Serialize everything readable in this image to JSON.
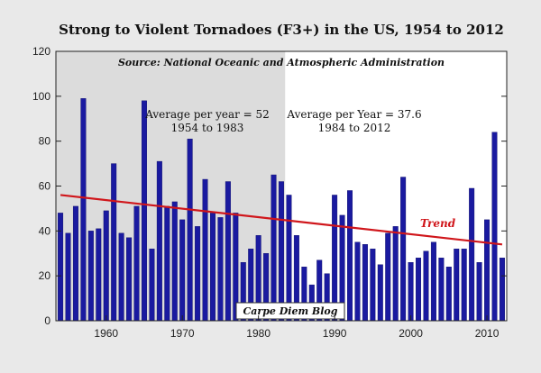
{
  "chart_data": {
    "type": "bar",
    "title": "Strong to Violent Tornadoes (F3+) in the US, 1954 to 2012",
    "source": "Source: National Oceanic and Atmospheric Administration",
    "xlabel": "",
    "ylabel": "",
    "ylim": [
      0,
      120
    ],
    "yticks": [
      "0",
      "20",
      "40",
      "60",
      "80",
      "100",
      "120"
    ],
    "xticks": [
      "1960",
      "1970",
      "1980",
      "1990",
      "2000",
      "2010"
    ],
    "xtick_years": [
      1960,
      1970,
      1980,
      1990,
      2000,
      2010
    ],
    "x": [
      1954,
      1955,
      1956,
      1957,
      1958,
      1959,
      1960,
      1961,
      1962,
      1963,
      1964,
      1965,
      1966,
      1967,
      1968,
      1969,
      1970,
      1971,
      1972,
      1973,
      1974,
      1975,
      1976,
      1977,
      1978,
      1979,
      1980,
      1981,
      1982,
      1983,
      1984,
      1985,
      1986,
      1987,
      1988,
      1989,
      1990,
      1991,
      1992,
      1993,
      1994,
      1995,
      1996,
      1997,
      1998,
      1999,
      2000,
      2001,
      2002,
      2003,
      2004,
      2005,
      2006,
      2007,
      2008,
      2009,
      2010,
      2011,
      2012
    ],
    "values": [
      48,
      39,
      51,
      99,
      40,
      41,
      49,
      70,
      39,
      37,
      51,
      98,
      32,
      71,
      51,
      53,
      45,
      81,
      42,
      63,
      48,
      46,
      62,
      48,
      26,
      32,
      38,
      30,
      65,
      62,
      56,
      38,
      24,
      16,
      27,
      21,
      56,
      47,
      58,
      35,
      34,
      32,
      25,
      39,
      42,
      64,
      26,
      28,
      31,
      35,
      28,
      24,
      32,
      32,
      59,
      26,
      45,
      84,
      28
    ],
    "series_name": "F3+ tornadoes",
    "bar_color": "#1a1aa0",
    "shaded_period": {
      "from": 1954,
      "to": 1983,
      "color": "#dcdcdc"
    },
    "trend": {
      "label": "Trend",
      "start": [
        1954,
        56
      ],
      "end": [
        2012,
        34
      ],
      "color": "#d0161b"
    },
    "annotations": [
      {
        "id": "avg1",
        "lines": [
          "Average per year = 52",
          "1954 to 1983"
        ]
      },
      {
        "id": "avg2",
        "lines": [
          "Average per Year = 37.6",
          "1984 to 2012"
        ]
      }
    ],
    "label_box": {
      "text": "Carpe Diem Blog"
    },
    "grid": false
  }
}
